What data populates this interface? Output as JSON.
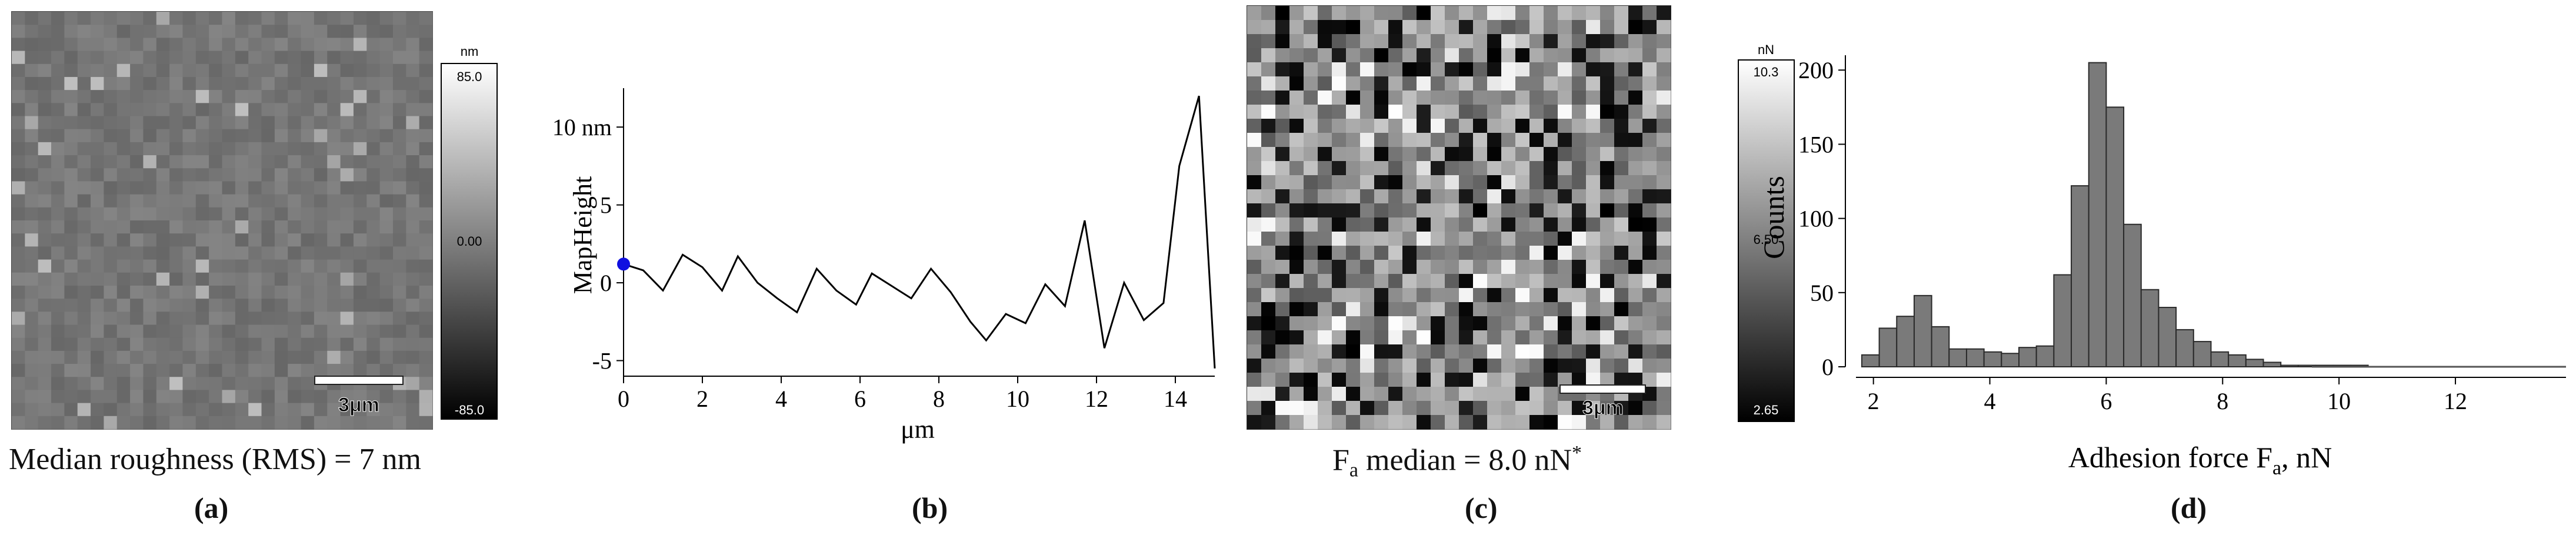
{
  "panel_a": {
    "letter": "(a)",
    "caption": "Median roughness (RMS) = 7 nm",
    "colorbar": {
      "unit": "nm",
      "max": "85.0",
      "mid": "0.00",
      "min": "-85.0"
    },
    "scalebar": "3μm"
  },
  "panel_b": {
    "letter": "(b)"
  },
  "panel_c": {
    "letter": "(c)",
    "caption_prefix": "F",
    "caption_sub": "a",
    "caption_main": " median = 8.0 nN",
    "caption_sup": "*",
    "colorbar": {
      "unit": "nN",
      "max": "10.3",
      "mid": "6.50",
      "min": "2.65"
    },
    "scalebar": "3μm"
  },
  "panel_d": {
    "letter": "(d)"
  },
  "chart_data": [
    {
      "type": "line",
      "panel": "b",
      "xlabel": "μm",
      "ylabel": "MapHeight",
      "xlim": [
        0,
        15
      ],
      "ylim": [
        -6,
        12.5
      ],
      "xticks": [
        0,
        2,
        4,
        6,
        8,
        10,
        12,
        14
      ],
      "yticks": [
        -5,
        0,
        5,
        10
      ],
      "ytick_labels": [
        "-5",
        "0",
        "5",
        "10 nm"
      ],
      "marker_point": [
        0,
        1.2
      ],
      "x": [
        0,
        0.5,
        1.0,
        1.5,
        2.0,
        2.5,
        2.9,
        3.4,
        3.9,
        4.4,
        4.9,
        5.4,
        5.9,
        6.3,
        6.8,
        7.3,
        7.8,
        8.3,
        8.8,
        9.2,
        9.7,
        10.2,
        10.7,
        11.2,
        11.7,
        12.2,
        12.7,
        13.2,
        13.7,
        14.1,
        14.6,
        15.0
      ],
      "y": [
        1.2,
        0.8,
        -0.5,
        1.8,
        1.0,
        -0.5,
        1.7,
        0.0,
        -1.0,
        -1.9,
        0.9,
        -0.5,
        -1.4,
        0.6,
        -0.2,
        -1.0,
        0.9,
        -0.6,
        -2.5,
        -3.7,
        -2.0,
        -2.6,
        -0.1,
        -1.5,
        4.0,
        -4.2,
        0.0,
        -2.4,
        -1.3,
        7.5,
        12.0,
        -5.5
      ]
    },
    {
      "type": "bar",
      "panel": "d",
      "xlabel_main": "Adhesion force F",
      "xlabel_sub": "a",
      "xlabel_suffix": ", nN",
      "ylabel": "Counts",
      "xlim": [
        1.7,
        13.9
      ],
      "ylim": [
        0,
        210
      ],
      "xticks": [
        2,
        4,
        6,
        8,
        10,
        12
      ],
      "yticks": [
        0,
        50,
        100,
        150,
        200
      ],
      "bin_width": 0.3,
      "bin_start": 1.8,
      "values": [
        8,
        26,
        34,
        48,
        27,
        12,
        12,
        10,
        9,
        13,
        14,
        62,
        122,
        205,
        175,
        96,
        52,
        40,
        25,
        17,
        10,
        8,
        5,
        3,
        1,
        1,
        1,
        1,
        1,
        0,
        0,
        0,
        0,
        0,
        0,
        0,
        0,
        0,
        0,
        0
      ]
    }
  ]
}
